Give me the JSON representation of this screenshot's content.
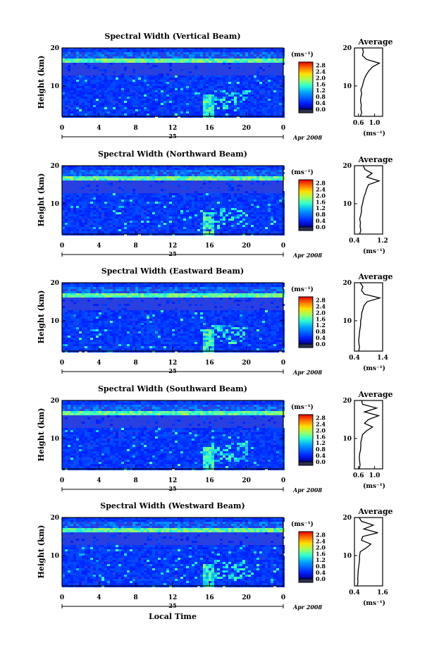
{
  "figure": {
    "xlabel": "Local Time",
    "date_label": "Apr 2008",
    "day_label": "25",
    "ylabel": "Height (km)",
    "cbar_unit": "(ms⁻¹)",
    "avg_title": "Average",
    "avg_xlabel": "(ms⁻¹)"
  },
  "chart_data": [
    {
      "type": "heatmap",
      "title": "Spectral Width (Vertical Beam)",
      "x_ticks": [
        "0",
        "4",
        "8",
        "12",
        "16",
        "20",
        "0"
      ],
      "y_ticks": [
        "10",
        "20"
      ],
      "xlim": [
        0,
        24
      ],
      "ylim": [
        2,
        20
      ],
      "colorbar": {
        "ticks": [
          "0.0",
          "0.4",
          "0.8",
          "1.2",
          "1.6",
          "2.0",
          "2.4",
          "2.8"
        ],
        "range": [
          0,
          3.0
        ]
      },
      "average_profile": {
        "x_ticks": [
          "0.6",
          "1.0"
        ],
        "xlim": [
          0.5,
          1.2
        ],
        "height": [
          2,
          3,
          4,
          5,
          6,
          7,
          8,
          9,
          10,
          11,
          12,
          13,
          14,
          15,
          16,
          17,
          18,
          19,
          20
        ],
        "values": [
          0.65,
          0.68,
          0.66,
          0.67,
          0.65,
          0.66,
          0.68,
          0.66,
          0.7,
          0.72,
          0.75,
          0.8,
          0.86,
          0.95,
          1.12,
          0.8,
          0.7,
          0.72,
          0.7
        ]
      }
    },
    {
      "type": "heatmap",
      "title": "Spectral Width (Northward Beam)",
      "x_ticks": [
        "0",
        "4",
        "8",
        "12",
        "16",
        "20",
        "0"
      ],
      "y_ticks": [
        "10",
        "20"
      ],
      "xlim": [
        0,
        24
      ],
      "ylim": [
        2,
        20
      ],
      "colorbar": {
        "ticks": [
          "0.0",
          "0.4",
          "0.8",
          "1.2",
          "1.6",
          "2.0",
          "2.4",
          "2.8"
        ],
        "range": [
          0,
          3.0
        ]
      },
      "average_profile": {
        "x_ticks": [
          "0.4",
          "1.2"
        ],
        "xlim": [
          0.4,
          1.2
        ],
        "height": [
          2,
          3,
          4,
          5,
          6,
          7,
          8,
          9,
          10,
          11,
          12,
          13,
          14,
          15,
          16,
          17,
          18,
          19,
          20
        ],
        "values": [
          0.55,
          0.58,
          0.56,
          0.57,
          0.55,
          0.58,
          0.6,
          0.6,
          0.63,
          0.65,
          0.68,
          0.72,
          0.75,
          0.8,
          1.1,
          0.75,
          0.9,
          0.7,
          0.65
        ]
      }
    },
    {
      "type": "heatmap",
      "title": "Spectral Width (Eastward Beam)",
      "x_ticks": [
        "0",
        "4",
        "8",
        "12",
        "16",
        "20",
        "0"
      ],
      "y_ticks": [
        "10",
        "20"
      ],
      "xlim": [
        0,
        24
      ],
      "ylim": [
        2,
        20
      ],
      "colorbar": {
        "ticks": [
          "0.0",
          "0.4",
          "0.8",
          "1.2",
          "1.6",
          "2.0",
          "2.4",
          "2.8"
        ],
        "range": [
          0,
          3.0
        ]
      },
      "average_profile": {
        "x_ticks": [
          "0.4",
          "1.4"
        ],
        "xlim": [
          0.4,
          1.4
        ],
        "height": [
          2,
          3,
          4,
          5,
          6,
          7,
          8,
          9,
          10,
          11,
          12,
          13,
          14,
          15,
          16,
          17,
          18,
          19,
          20
        ],
        "values": [
          0.55,
          0.58,
          0.56,
          0.55,
          0.57,
          0.58,
          0.6,
          0.62,
          0.62,
          0.65,
          0.66,
          0.7,
          0.74,
          0.85,
          1.3,
          0.75,
          0.65,
          0.7,
          0.6
        ]
      }
    },
    {
      "type": "heatmap",
      "title": "Spectral Width (Southward Beam)",
      "x_ticks": [
        "0",
        "4",
        "8",
        "12",
        "16",
        "20",
        "0"
      ],
      "y_ticks": [
        "10",
        "20"
      ],
      "xlim": [
        0,
        24
      ],
      "ylim": [
        2,
        20
      ],
      "colorbar": {
        "ticks": [
          "0.0",
          "0.4",
          "0.8",
          "1.2",
          "1.6",
          "2.0",
          "2.4",
          "2.8"
        ],
        "range": [
          0,
          3.0
        ]
      },
      "average_profile": {
        "x_ticks": [
          "0.6",
          "1.0"
        ],
        "xlim": [
          0.5,
          1.2
        ],
        "height": [
          2,
          3,
          4,
          5,
          6,
          7,
          8,
          9,
          10,
          11,
          12,
          13,
          14,
          15,
          16,
          17,
          18,
          19,
          20
        ],
        "values": [
          0.62,
          0.64,
          0.63,
          0.62,
          0.63,
          0.65,
          0.66,
          0.66,
          0.68,
          0.7,
          0.8,
          0.95,
          0.75,
          0.85,
          1.1,
          0.75,
          1.05,
          0.7,
          0.68
        ]
      }
    },
    {
      "type": "heatmap",
      "title": "Spectral Width (Westward Beam)",
      "x_ticks": [
        "0",
        "4",
        "8",
        "12",
        "16",
        "20",
        "0"
      ],
      "y_ticks": [
        "10",
        "20"
      ],
      "xlim": [
        0,
        24
      ],
      "ylim": [
        2,
        20
      ],
      "colorbar": {
        "ticks": [
          "0.0",
          "0.4",
          "0.8",
          "1.2",
          "1.6",
          "2.0",
          "2.4",
          "2.8"
        ],
        "range": [
          0,
          3.0
        ]
      },
      "average_profile": {
        "x_ticks": [
          "0.4",
          "1.6"
        ],
        "xlim": [
          0.4,
          1.6
        ],
        "height": [
          2,
          3,
          4,
          5,
          6,
          7,
          8,
          9,
          10,
          11,
          12,
          13,
          14,
          15,
          16,
          17,
          18,
          19,
          20
        ],
        "values": [
          0.52,
          0.55,
          0.54,
          0.55,
          0.56,
          0.58,
          0.6,
          0.62,
          0.62,
          0.65,
          0.9,
          1.1,
          0.7,
          0.75,
          1.4,
          0.8,
          1.2,
          0.7,
          0.6
        ]
      }
    }
  ]
}
